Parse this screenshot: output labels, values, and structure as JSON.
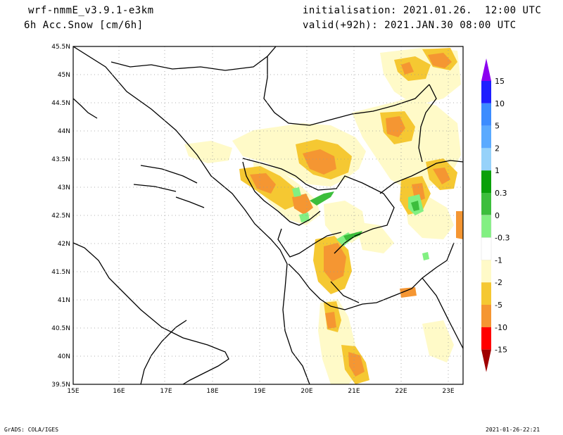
{
  "header": {
    "model": "wrf-nmmE_v3.9.1-e3km",
    "variable": "6h Acc.Snow [cm/6h]",
    "init": "initialisation: 2021.01.26.  12:00 UTC",
    "valid": "valid(+92h): 2021.JAN.30 08:00 UTC"
  },
  "map": {
    "lon_ticks": [
      "15E",
      "16E",
      "17E",
      "18E",
      "19E",
      "20E",
      "21E",
      "22E",
      "23E"
    ],
    "lat_ticks": [
      "45.5N",
      "45N",
      "44.5N",
      "44N",
      "43.5N",
      "43N",
      "42.5N",
      "42N",
      "41.5N",
      "41N",
      "40.5N",
      "40N",
      "39.5N"
    ]
  },
  "colorbar": {
    "labels": [
      "15",
      "10",
      "5",
      "2",
      "1",
      "0.3",
      "0",
      "-0.3",
      "-1",
      "-2",
      "-5",
      "-10",
      "-15"
    ],
    "colors": [
      "#1f1fff",
      "#3c8cff",
      "#5aaaff",
      "#96d2fa",
      "#0aa00a",
      "#3cbe3c",
      "#82f082",
      "#ffffff",
      "#fffac8",
      "#f5c832",
      "#f59632",
      "#ff0000",
      "#c80000",
      "#a00000",
      "#8c00f0"
    ]
  },
  "footer": {
    "left": "GrADS: COLA/IGES",
    "right": "2021-01-26-22:21"
  }
}
